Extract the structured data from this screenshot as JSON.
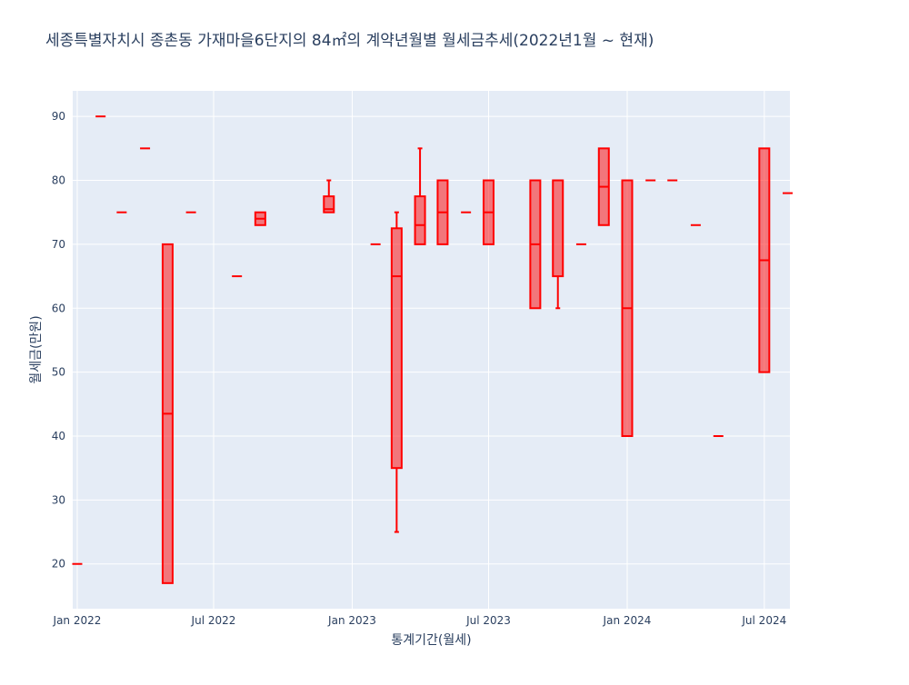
{
  "chart_data": {
    "type": "box",
    "title": "세종특별자치시  종촌동 가재마을6단지의 84㎡의 계약년월별 월세금추세(2022년1월 ~ 현재)",
    "xlabel": "통계기간(월세)",
    "ylabel": "월세금(만원)",
    "ylim": [
      13,
      94
    ],
    "yticks": [
      20,
      30,
      40,
      50,
      60,
      70,
      80,
      90
    ],
    "xlim": [
      "2021-12-26",
      "2024-08-04"
    ],
    "xticks": [
      {
        "date": "2022-01-01",
        "label": "Jan 2022"
      },
      {
        "date": "2022-07-01",
        "label": "Jul 2022"
      },
      {
        "date": "2023-01-01",
        "label": "Jan 2023"
      },
      {
        "date": "2023-07-01",
        "label": "Jul 2023"
      },
      {
        "date": "2024-01-01",
        "label": "Jan 2024"
      },
      {
        "date": "2024-07-01",
        "label": "Jul 2024"
      }
    ],
    "color": "#ff0000",
    "fill": "rgba(255,0,0,0.5)",
    "plot_bg": "#e5ecf6",
    "grid": true,
    "boxes": [
      {
        "x": "2022-01",
        "min": 20,
        "q1": 20,
        "median": 20,
        "q3": 20,
        "max": 20
      },
      {
        "x": "2022-02",
        "min": 90,
        "q1": 90,
        "median": 90,
        "q3": 90,
        "max": 90
      },
      {
        "x": "2022-03",
        "min": 75,
        "q1": 75,
        "median": 75,
        "q3": 75,
        "max": 75
      },
      {
        "x": "2022-04",
        "min": 85,
        "q1": 85,
        "median": 85,
        "q3": 85,
        "max": 85
      },
      {
        "x": "2022-05",
        "min": 17,
        "q1": 17,
        "median": 43.5,
        "q3": 70,
        "max": 70
      },
      {
        "x": "2022-06",
        "min": 75,
        "q1": 75,
        "median": 75,
        "q3": 75,
        "max": 75
      },
      {
        "x": "2022-08",
        "min": 65,
        "q1": 65,
        "median": 65,
        "q3": 65,
        "max": 65
      },
      {
        "x": "2022-09",
        "min": 73,
        "q1": 73,
        "median": 74,
        "q3": 75,
        "max": 75
      },
      {
        "x": "2022-12",
        "min": 75,
        "q1": 75,
        "median": 75.5,
        "q3": 77.5,
        "max": 80
      },
      {
        "x": "2023-02",
        "min": 70,
        "q1": 70,
        "median": 70,
        "q3": 70,
        "max": 70
      },
      {
        "x": "2023-03",
        "min": 25,
        "q1": 35,
        "median": 65,
        "q3": 72.5,
        "max": 75
      },
      {
        "x": "2023-04",
        "min": 70,
        "q1": 70,
        "median": 73,
        "q3": 77.5,
        "max": 85
      },
      {
        "x": "2023-05",
        "min": 70,
        "q1": 70,
        "median": 75,
        "q3": 80,
        "max": 80
      },
      {
        "x": "2023-06",
        "min": 75,
        "q1": 75,
        "median": 75,
        "q3": 75,
        "max": 75
      },
      {
        "x": "2023-07",
        "min": 70,
        "q1": 70,
        "median": 75,
        "q3": 80,
        "max": 80
      },
      {
        "x": "2023-09",
        "min": 60,
        "q1": 60,
        "median": 70,
        "q3": 80,
        "max": 80
      },
      {
        "x": "2023-10",
        "min": 60,
        "q1": 65,
        "median": 80,
        "q3": 80,
        "max": 80
      },
      {
        "x": "2023-11",
        "min": 70,
        "q1": 70,
        "median": 70,
        "q3": 70,
        "max": 70
      },
      {
        "x": "2023-12",
        "min": 73,
        "q1": 73,
        "median": 79,
        "q3": 85,
        "max": 85
      },
      {
        "x": "2024-01",
        "min": 40,
        "q1": 40,
        "median": 60,
        "q3": 80,
        "max": 80
      },
      {
        "x": "2024-02",
        "min": 80,
        "q1": 80,
        "median": 80,
        "q3": 80,
        "max": 80
      },
      {
        "x": "2024-03",
        "min": 80,
        "q1": 80,
        "median": 80,
        "q3": 80,
        "max": 80
      },
      {
        "x": "2024-04",
        "min": 73,
        "q1": 73,
        "median": 73,
        "q3": 73,
        "max": 73
      },
      {
        "x": "2024-05",
        "min": 40,
        "q1": 40,
        "median": 40,
        "q3": 40,
        "max": 40
      },
      {
        "x": "2024-07",
        "min": 50,
        "q1": 50,
        "median": 67.5,
        "q3": 85,
        "max": 85
      },
      {
        "x": "2024-08",
        "min": 78,
        "q1": 78,
        "median": 78,
        "q3": 78,
        "max": 78
      }
    ]
  }
}
